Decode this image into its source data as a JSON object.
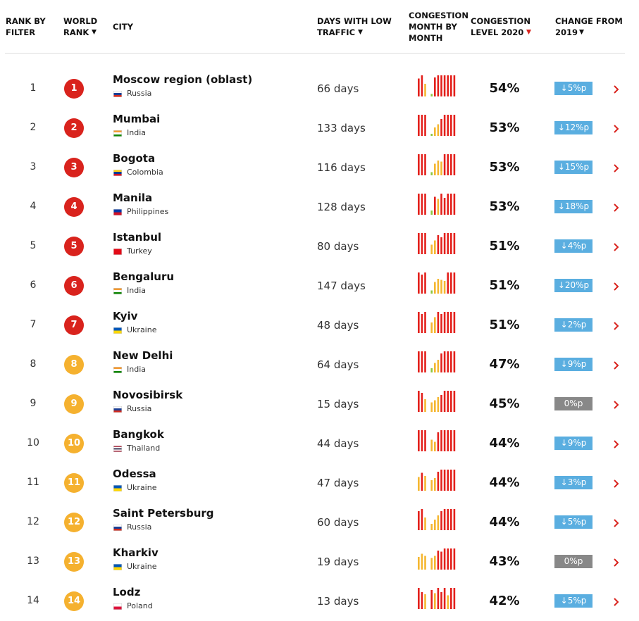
{
  "header": {
    "rank_by_filter": [
      "RANK BY",
      "FILTER"
    ],
    "world_rank": [
      "WORLD",
      "RANK"
    ],
    "city": "CITY",
    "days_low_traffic": [
      "DAYS WITH LOW",
      "TRAFFIC"
    ],
    "congestion_month": [
      "CONGESTION",
      "MONTH BY",
      "MONTH"
    ],
    "congestion_level": [
      "CONGESTION",
      "LEVEL 2020"
    ],
    "change": [
      "CHANGE FROM",
      "2019"
    ]
  },
  "table": {
    "rows": [
      {
        "rank": "1",
        "world_rank": "1",
        "city": "Moscow region (oblast)",
        "country": "Russia",
        "days": "66 days",
        "level": "54%",
        "change": "↓5%p",
        "rank_color": "#d9231d",
        "change_color": "#5aaee0",
        "flag": [
          "#ffffff",
          "#1c3f94",
          "#d52b1e"
        ],
        "months": [
          85,
          100,
          60,
          0,
          12,
          90,
          100,
          100,
          100,
          100,
          100,
          100
        ]
      },
      {
        "rank": "2",
        "world_rank": "2",
        "city": "Mumbai",
        "country": "India",
        "days": "133 days",
        "level": "53%",
        "change": "↓12%p",
        "rank_color": "#d9231d",
        "change_color": "#5aaee0",
        "flag": [
          "#f49a31",
          "#ffffff",
          "#128807"
        ],
        "months": [
          100,
          100,
          100,
          0,
          10,
          40,
          55,
          80,
          100,
          100,
          100,
          100
        ]
      },
      {
        "rank": "3",
        "world_rank": "3",
        "city": "Bogota",
        "country": "Colombia",
        "days": "116 days",
        "level": "53%",
        "change": "↓15%p",
        "rank_color": "#d9231d",
        "change_color": "#5aaee0",
        "flag": [
          "#fcd116",
          "#003893",
          "#ce1126"
        ],
        "months": [
          100,
          100,
          100,
          0,
          15,
          55,
          70,
          65,
          100,
          100,
          100,
          100
        ]
      },
      {
        "rank": "4",
        "world_rank": "4",
        "city": "Manila",
        "country": "Philippines",
        "days": "128 days",
        "level": "53%",
        "change": "↓18%p",
        "rank_color": "#d9231d",
        "change_color": "#5aaee0",
        "flag": [
          "#0038a8",
          "#ce1126"
        ],
        "months": [
          100,
          100,
          100,
          0,
          20,
          85,
          75,
          100,
          80,
          100,
          100,
          100
        ]
      },
      {
        "rank": "5",
        "world_rank": "5",
        "city": "Istanbul",
        "country": "Turkey",
        "days": "80 days",
        "level": "51%",
        "change": "↓4%p",
        "rank_color": "#d9231d",
        "change_color": "#5aaee0",
        "flag": [
          "#e30a17"
        ],
        "months": [
          100,
          100,
          100,
          0,
          45,
          65,
          90,
          80,
          100,
          100,
          100,
          100
        ]
      },
      {
        "rank": "6",
        "world_rank": "6",
        "city": "Bengaluru",
        "country": "India",
        "days": "147 days",
        "level": "51%",
        "change": "↓20%p",
        "rank_color": "#d9231d",
        "change_color": "#5aaee0",
        "flag": [
          "#f49a31",
          "#ffffff",
          "#128807"
        ],
        "months": [
          100,
          90,
          100,
          0,
          15,
          55,
          70,
          65,
          60,
          100,
          100,
          100
        ]
      },
      {
        "rank": "7",
        "world_rank": "7",
        "city": "Kyiv",
        "country": "Ukraine",
        "days": "48 days",
        "level": "51%",
        "change": "↓2%p",
        "rank_color": "#d9231d",
        "change_color": "#5aaee0",
        "flag": [
          "#0057b7",
          "#ffd700"
        ],
        "months": [
          100,
          90,
          100,
          0,
          50,
          75,
          100,
          90,
          100,
          100,
          100,
          100
        ]
      },
      {
        "rank": "8",
        "world_rank": "8",
        "city": "New Delhi",
        "country": "India",
        "days": "64 days",
        "level": "47%",
        "change": "↓9%p",
        "rank_color": "#f5b12f",
        "change_color": "#5aaee0",
        "flag": [
          "#f49a31",
          "#ffffff",
          "#128807"
        ],
        "months": [
          100,
          100,
          100,
          0,
          20,
          45,
          60,
          90,
          100,
          100,
          100,
          100
        ]
      },
      {
        "rank": "9",
        "world_rank": "9",
        "city": "Novosibirsk",
        "country": "Russia",
        "days": "15 days",
        "level": "45%",
        "change": "0%p",
        "rank_color": "#f5b12f",
        "change_color": "#888888",
        "flag": [
          "#ffffff",
          "#1c3f94",
          "#d52b1e"
        ],
        "months": [
          100,
          90,
          60,
          0,
          45,
          55,
          70,
          80,
          100,
          100,
          100,
          100
        ]
      },
      {
        "rank": "10",
        "world_rank": "10",
        "city": "Bangkok",
        "country": "Thailand",
        "days": "44 days",
        "level": "44%",
        "change": "↓9%p",
        "rank_color": "#f5b12f",
        "change_color": "#5aaee0",
        "flag": [
          "#a51931",
          "#ffffff",
          "#2d2a4a",
          "#ffffff",
          "#a51931"
        ],
        "months": [
          100,
          100,
          100,
          0,
          55,
          45,
          90,
          100,
          100,
          100,
          100,
          100
        ]
      },
      {
        "rank": "11",
        "world_rank": "11",
        "city": "Odessa",
        "country": "Ukraine",
        "days": "47 days",
        "level": "44%",
        "change": "↓3%p",
        "rank_color": "#f5b12f",
        "change_color": "#5aaee0",
        "flag": [
          "#0057b7",
          "#ffd700"
        ],
        "months": [
          65,
          85,
          70,
          0,
          50,
          60,
          90,
          100,
          100,
          100,
          100,
          100
        ]
      },
      {
        "rank": "12",
        "world_rank": "12",
        "city": "Saint Petersburg",
        "country": "Russia",
        "days": "60 days",
        "level": "44%",
        "change": "↓5%p",
        "rank_color": "#f5b12f",
        "change_color": "#5aaee0",
        "flag": [
          "#ffffff",
          "#1c3f94",
          "#d52b1e"
        ],
        "months": [
          90,
          100,
          60,
          0,
          30,
          50,
          70,
          90,
          100,
          100,
          100,
          100
        ]
      },
      {
        "rank": "13",
        "world_rank": "13",
        "city": "Kharkiv",
        "country": "Ukraine",
        "days": "19 days",
        "level": "43%",
        "change": "0%p",
        "rank_color": "#f5b12f",
        "change_color": "#888888",
        "flag": [
          "#0057b7",
          "#ffd700"
        ],
        "months": [
          60,
          75,
          65,
          0,
          55,
          65,
          90,
          85,
          100,
          100,
          100,
          100
        ]
      },
      {
        "rank": "14",
        "world_rank": "14",
        "city": "Lodz",
        "country": "Poland",
        "days": "13 days",
        "level": "42%",
        "change": "↓5%p",
        "rank_color": "#f5b12f",
        "change_color": "#5aaee0",
        "flag": [
          "#ffffff",
          "#dc143c"
        ],
        "months": [
          100,
          80,
          70,
          0,
          90,
          75,
          100,
          80,
          100,
          65,
          100,
          100
        ]
      }
    ]
  }
}
